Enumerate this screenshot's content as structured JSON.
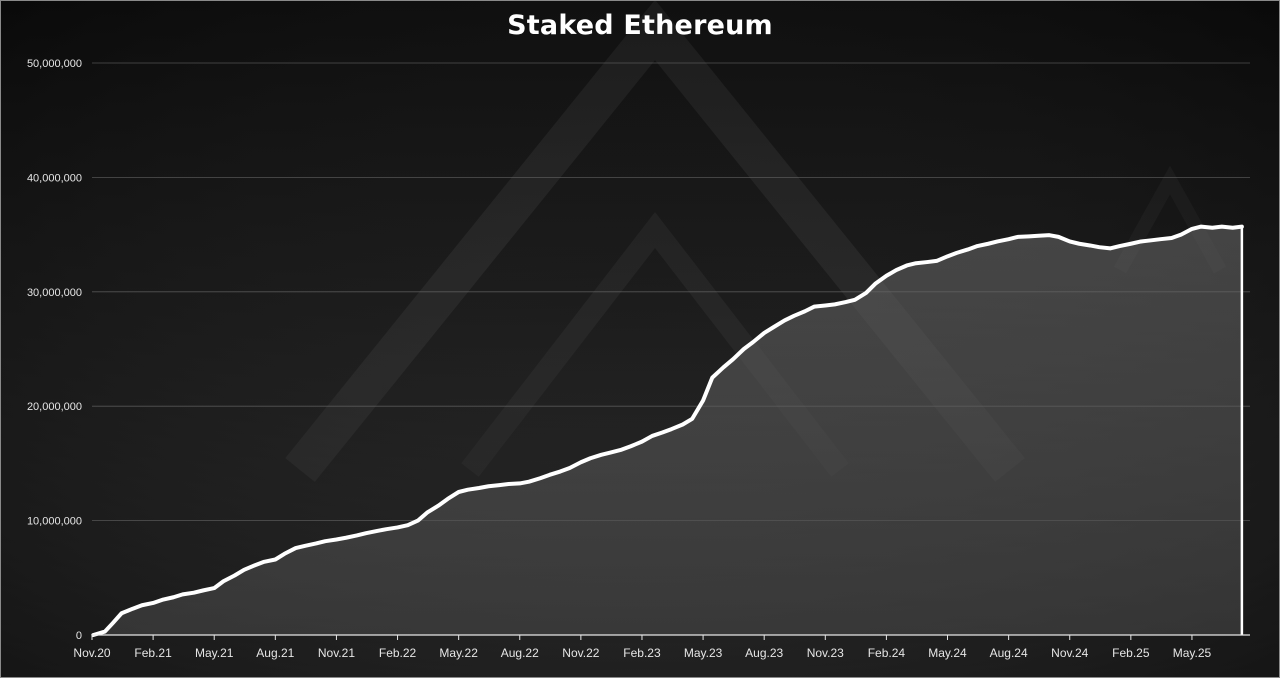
{
  "chart_data": {
    "type": "area",
    "title": "Staked Ethereum",
    "xlabel": "",
    "ylabel": "",
    "ylim": [
      0,
      50000000
    ],
    "xlim": [
      "2020-11",
      "2025-07"
    ],
    "grid": true,
    "y_ticks": [
      "0",
      "10,000,000",
      "20,000,000",
      "30,000,000",
      "40,000,000",
      "50,000,000"
    ],
    "y_tick_values": [
      0,
      10000000,
      20000000,
      30000000,
      40000000,
      50000000
    ],
    "x_ticks": [
      "Nov.20",
      "Feb.21",
      "May.21",
      "Aug.21",
      "Nov.21",
      "Feb.22",
      "May.22",
      "Aug.22",
      "Nov.22",
      "Feb.23",
      "May.23",
      "Aug.23",
      "Nov.23",
      "Feb.24",
      "May.24",
      "Aug.24",
      "Nov.24",
      "Feb.25",
      "May.25"
    ],
    "x_tick_dates": [
      "2020-11",
      "2021-02",
      "2021-05",
      "2021-08",
      "2021-11",
      "2022-02",
      "2022-05",
      "2022-08",
      "2022-11",
      "2023-02",
      "2023-05",
      "2023-08",
      "2023-11",
      "2024-02",
      "2024-05",
      "2024-08",
      "2024-11",
      "2025-02",
      "2025-05"
    ],
    "series": [
      {
        "name": "",
        "color": "#ffffff",
        "fill": "#4a4a4a",
        "x": [
          "2020-11-03",
          "2020-11-20",
          "2020-12-01",
          "2020-12-15",
          "2021-01-01",
          "2021-01-15",
          "2021-02-01",
          "2021-02-15",
          "2021-03-01",
          "2021-03-15",
          "2021-04-01",
          "2021-04-15",
          "2021-05-01",
          "2021-05-15",
          "2021-06-01",
          "2021-06-15",
          "2021-07-01",
          "2021-07-15",
          "2021-08-01",
          "2021-08-15",
          "2021-09-01",
          "2021-09-15",
          "2021-10-01",
          "2021-10-15",
          "2021-11-01",
          "2021-11-15",
          "2021-12-01",
          "2021-12-15",
          "2022-01-01",
          "2022-01-15",
          "2022-02-01",
          "2022-02-15",
          "2022-03-01",
          "2022-03-15",
          "2022-04-01",
          "2022-04-15",
          "2022-05-01",
          "2022-05-15",
          "2022-06-01",
          "2022-06-15",
          "2022-07-01",
          "2022-07-15",
          "2022-08-01",
          "2022-08-15",
          "2022-09-01",
          "2022-09-15",
          "2022-10-01",
          "2022-10-15",
          "2022-11-01",
          "2022-11-15",
          "2022-12-01",
          "2022-12-15",
          "2023-01-01",
          "2023-01-15",
          "2023-02-01",
          "2023-02-15",
          "2023-03-01",
          "2023-03-15",
          "2023-04-01",
          "2023-04-15",
          "2023-05-01",
          "2023-05-15",
          "2023-06-01",
          "2023-06-15",
          "2023-07-01",
          "2023-07-15",
          "2023-08-01",
          "2023-08-15",
          "2023-09-01",
          "2023-09-15",
          "2023-10-01",
          "2023-10-15",
          "2023-11-01",
          "2023-11-15",
          "2023-12-01",
          "2023-12-15",
          "2024-01-01",
          "2024-01-15",
          "2024-02-01",
          "2024-02-15",
          "2024-03-01",
          "2024-03-15",
          "2024-04-01",
          "2024-04-15",
          "2024-05-01",
          "2024-05-15",
          "2024-06-01",
          "2024-06-15",
          "2024-07-01",
          "2024-07-15",
          "2024-08-01",
          "2024-08-15",
          "2024-09-01",
          "2024-09-15",
          "2024-10-01",
          "2024-10-15",
          "2024-11-01",
          "2024-11-15",
          "2024-12-01",
          "2024-12-15",
          "2025-01-01",
          "2025-01-15",
          "2025-02-01",
          "2025-02-15",
          "2025-03-01",
          "2025-03-15",
          "2025-04-01",
          "2025-04-15",
          "2025-05-01",
          "2025-05-15",
          "2025-06-01",
          "2025-06-15",
          "2025-07-01",
          "2025-07-15"
        ],
        "values": [
          0,
          300000,
          1000000,
          1900000,
          2300000,
          2600000,
          2800000,
          3100000,
          3300000,
          3550000,
          3700000,
          3900000,
          4100000,
          4700000,
          5200000,
          5700000,
          6100000,
          6400000,
          6600000,
          7100000,
          7600000,
          7800000,
          8000000,
          8200000,
          8350000,
          8500000,
          8700000,
          8900000,
          9100000,
          9250000,
          9400000,
          9600000,
          10000000,
          10700000,
          11300000,
          11900000,
          12500000,
          12700000,
          12850000,
          13000000,
          13100000,
          13200000,
          13250000,
          13400000,
          13700000,
          14000000,
          14300000,
          14600000,
          15100000,
          15450000,
          15750000,
          15950000,
          16200000,
          16500000,
          16900000,
          17400000,
          17700000,
          18000000,
          18400000,
          18900000,
          20500000,
          22500000,
          23400000,
          24100000,
          25000000,
          25600000,
          26400000,
          26900000,
          27500000,
          27900000,
          28300000,
          28700000,
          28800000,
          28900000,
          29100000,
          29300000,
          29900000,
          30700000,
          31400000,
          31900000,
          32300000,
          32500000,
          32600000,
          32700000,
          33100000,
          33400000,
          33700000,
          34000000,
          34200000,
          34400000,
          34600000,
          34800000,
          34850000,
          34900000,
          34950000,
          34800000,
          34400000,
          34200000,
          34050000,
          33900000,
          33800000,
          34000000,
          34200000,
          34400000,
          34500000,
          34600000,
          34700000,
          35000000,
          35500000,
          35700000,
          35600000,
          35700000,
          35600000,
          35700000
        ]
      }
    ]
  }
}
